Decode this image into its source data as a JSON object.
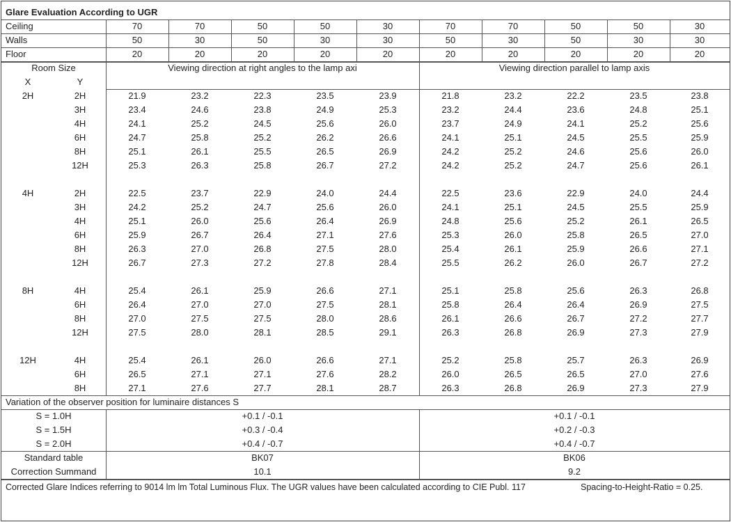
{
  "title": "Glare Evaluation According to UGR",
  "reflectances": [
    {
      "label": "Ceiling",
      "values": [
        "70",
        "70",
        "50",
        "50",
        "30",
        "70",
        "70",
        "50",
        "50",
        "30"
      ]
    },
    {
      "label": "Walls",
      "values": [
        "50",
        "30",
        "50",
        "30",
        "30",
        "50",
        "30",
        "50",
        "30",
        "30"
      ]
    },
    {
      "label": "Floor",
      "values": [
        "20",
        "20",
        "20",
        "20",
        "20",
        "20",
        "20",
        "20",
        "20",
        "20"
      ]
    }
  ],
  "room_size_label": "Room Size",
  "x_label": "X",
  "y_label": "Y",
  "directions": [
    "Viewing direction at right angles to the lamp axi",
    "Viewing direction parallel to lamp axis"
  ],
  "groups": [
    {
      "x": "2H",
      "rows": [
        {
          "y": "2H",
          "values": [
            "21.9",
            "23.2",
            "22.3",
            "23.5",
            "23.9",
            "21.8",
            "23.2",
            "22.2",
            "23.5",
            "23.8"
          ]
        },
        {
          "y": "3H",
          "values": [
            "23.4",
            "24.6",
            "23.8",
            "24.9",
            "25.3",
            "23.2",
            "24.4",
            "23.6",
            "24.8",
            "25.1"
          ]
        },
        {
          "y": "4H",
          "values": [
            "24.1",
            "25.2",
            "24.5",
            "25.6",
            "26.0",
            "23.7",
            "24.9",
            "24.1",
            "25.2",
            "25.6"
          ]
        },
        {
          "y": "6H",
          "values": [
            "24.7",
            "25.8",
            "25.2",
            "26.2",
            "26.6",
            "24.1",
            "25.1",
            "24.5",
            "25.5",
            "25.9"
          ]
        },
        {
          "y": "8H",
          "values": [
            "25.1",
            "26.1",
            "25.5",
            "26.5",
            "26.9",
            "24.2",
            "25.2",
            "24.6",
            "25.6",
            "26.0"
          ]
        },
        {
          "y": "12H",
          "values": [
            "25.3",
            "26.3",
            "25.8",
            "26.7",
            "27.2",
            "24.2",
            "25.2",
            "24.7",
            "25.6",
            "26.1"
          ]
        }
      ]
    },
    {
      "x": "4H",
      "rows": [
        {
          "y": "2H",
          "values": [
            "22.5",
            "23.7",
            "22.9",
            "24.0",
            "24.4",
            "22.5",
            "23.6",
            "22.9",
            "24.0",
            "24.4"
          ]
        },
        {
          "y": "3H",
          "values": [
            "24.2",
            "25.2",
            "24.7",
            "25.6",
            "26.0",
            "24.1",
            "25.1",
            "24.5",
            "25.5",
            "25.9"
          ]
        },
        {
          "y": "4H",
          "values": [
            "25.1",
            "26.0",
            "25.6",
            "26.4",
            "26.9",
            "24.8",
            "25.6",
            "25.2",
            "26.1",
            "26.5"
          ]
        },
        {
          "y": "6H",
          "values": [
            "25.9",
            "26.7",
            "26.4",
            "27.1",
            "27.6",
            "25.3",
            "26.0",
            "25.8",
            "26.5",
            "27.0"
          ]
        },
        {
          "y": "8H",
          "values": [
            "26.3",
            "27.0",
            "26.8",
            "27.5",
            "28.0",
            "25.4",
            "26.1",
            "25.9",
            "26.6",
            "27.1"
          ]
        },
        {
          "y": "12H",
          "values": [
            "26.7",
            "27.3",
            "27.2",
            "27.8",
            "28.4",
            "25.5",
            "26.2",
            "26.0",
            "26.7",
            "27.2"
          ]
        }
      ]
    },
    {
      "x": "8H",
      "rows": [
        {
          "y": "4H",
          "values": [
            "25.4",
            "26.1",
            "25.9",
            "26.6",
            "27.1",
            "25.1",
            "25.8",
            "25.6",
            "26.3",
            "26.8"
          ]
        },
        {
          "y": "6H",
          "values": [
            "26.4",
            "27.0",
            "27.0",
            "27.5",
            "28.1",
            "25.8",
            "26.4",
            "26.4",
            "26.9",
            "27.5"
          ]
        },
        {
          "y": "8H",
          "values": [
            "27.0",
            "27.5",
            "27.5",
            "28.0",
            "28.6",
            "26.1",
            "26.6",
            "26.7",
            "27.2",
            "27.7"
          ]
        },
        {
          "y": "12H",
          "values": [
            "27.5",
            "28.0",
            "28.1",
            "28.5",
            "29.1",
            "26.3",
            "26.8",
            "26.9",
            "27.3",
            "27.9"
          ]
        }
      ]
    },
    {
      "x": "12H",
      "rows": [
        {
          "y": "4H",
          "values": [
            "25.4",
            "26.1",
            "26.0",
            "26.6",
            "27.1",
            "25.2",
            "25.8",
            "25.7",
            "26.3",
            "26.9"
          ]
        },
        {
          "y": "6H",
          "values": [
            "26.5",
            "27.1",
            "27.1",
            "27.6",
            "28.2",
            "26.0",
            "26.5",
            "26.5",
            "27.0",
            "27.6"
          ]
        },
        {
          "y": "8H",
          "values": [
            "27.1",
            "27.6",
            "27.7",
            "28.1",
            "28.7",
            "26.3",
            "26.8",
            "26.9",
            "27.3",
            "27.9"
          ]
        }
      ]
    }
  ],
  "variation": {
    "title": "Variation of the observer position for luminaire distances S",
    "rows": [
      {
        "label": "S = 1.0H",
        "values": [
          "+0.1 / -0.1",
          "+0.1 / -0.1"
        ]
      },
      {
        "label": "S = 1.5H",
        "values": [
          "+0.3 / -0.4",
          "+0.2 / -0.3"
        ]
      },
      {
        "label": "S = 2.0H",
        "values": [
          "+0.4 / -0.7",
          "+0.4 / -0.7"
        ]
      }
    ]
  },
  "standard_table": {
    "label": "Standard table",
    "values": [
      "BK07",
      "BK06"
    ]
  },
  "correction_summand": {
    "label": "Correction Summand",
    "values": [
      "10.1",
      "9.2"
    ]
  },
  "footer_note": "Corrected Glare Indices referring to 9014 lm lm Total Luminous Flux. The UGR values have been calculated according to CIE Publ. 117",
  "spacing_ratio": "Spacing-to-Height-Ratio = 0.25."
}
